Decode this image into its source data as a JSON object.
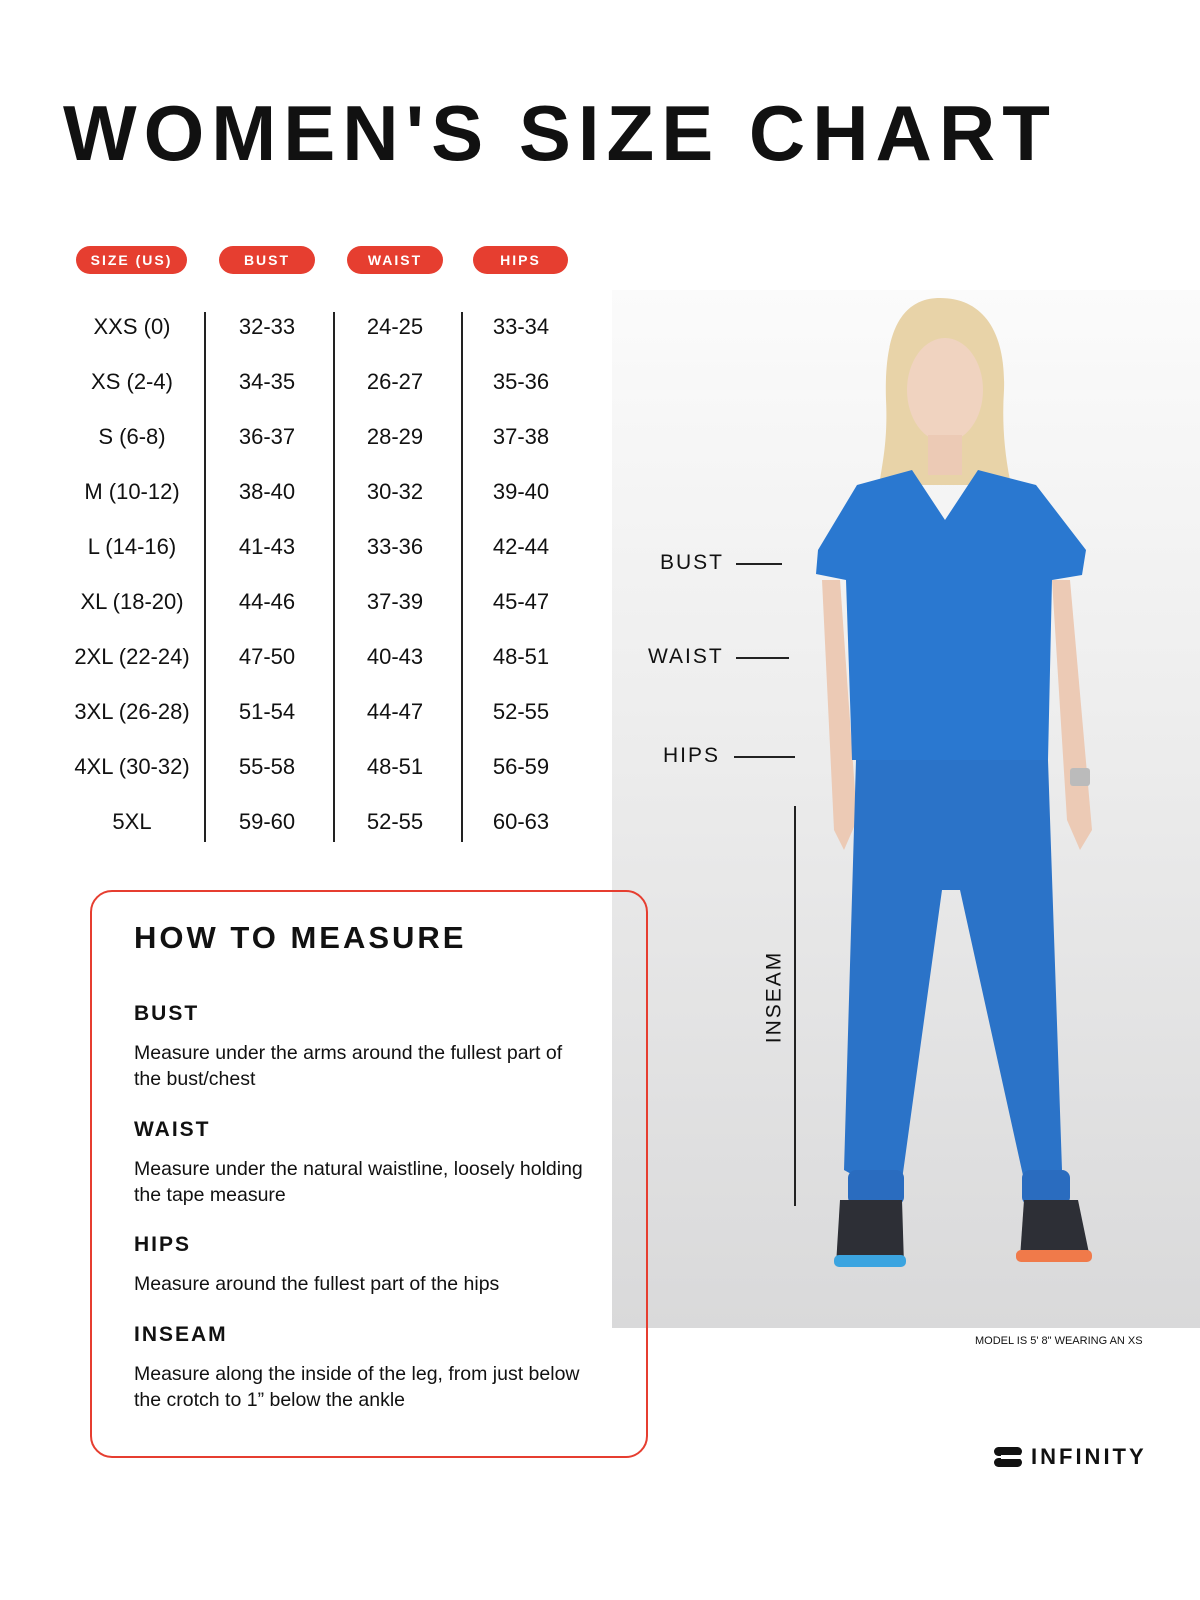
{
  "title": "WOMEN'S SIZE CHART",
  "table": {
    "headers": [
      "SIZE (US)",
      "BUST",
      "WAIST",
      "HIPS"
    ],
    "rows": [
      [
        "XXS (0)",
        "32-33",
        "24-25",
        "33-34"
      ],
      [
        "XS (2-4)",
        "34-35",
        "26-27",
        "35-36"
      ],
      [
        "S (6-8)",
        "36-37",
        "28-29",
        "37-38"
      ],
      [
        "M (10-12)",
        "38-40",
        "30-32",
        "39-40"
      ],
      [
        "L (14-16)",
        "41-43",
        "33-36",
        "42-44"
      ],
      [
        "XL (18-20)",
        "44-46",
        "37-39",
        "45-47"
      ],
      [
        "2XL (22-24)",
        "47-50",
        "40-43",
        "48-51"
      ],
      [
        "3XL (26-28)",
        "51-54",
        "44-47",
        "52-55"
      ],
      [
        "4XL (30-32)",
        "55-58",
        "48-51",
        "56-59"
      ],
      [
        "5XL",
        "59-60",
        "52-55",
        "60-63"
      ]
    ]
  },
  "photo_labels": {
    "bust": "BUST",
    "waist": "WAIST",
    "hips": "HIPS",
    "inseam": "INSEAM"
  },
  "model_note": "MODEL IS 5' 8\" WEARING AN XS",
  "how_to": {
    "title": "HOW TO MEASURE",
    "items": [
      {
        "label": "BUST",
        "text": "Measure under the arms around the fullest part of the bust/chest"
      },
      {
        "label": "WAIST",
        "text": "Measure under the natural waistline, loosely holding the tape measure"
      },
      {
        "label": "HIPS",
        "text": "Measure around the fullest part of the hips"
      },
      {
        "label": "INSEAM",
        "text": "Measure along the inside of the leg, from just below the crotch to 1” below the ankle"
      }
    ]
  },
  "brand": "INFINITY",
  "colors": {
    "accent": "#e63e30",
    "garment": "#2a78d0"
  }
}
